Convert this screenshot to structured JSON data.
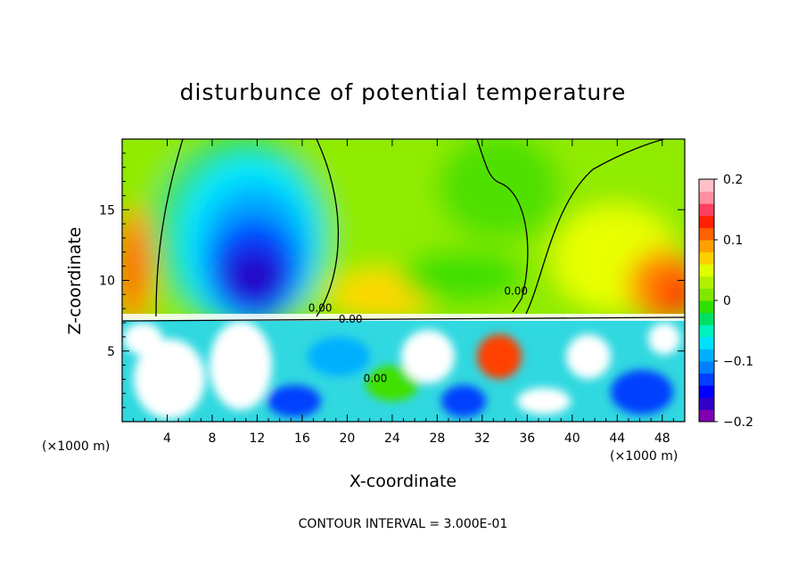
{
  "chart_data": {
    "type": "heatmap",
    "title": "disturbunce of potential temperature",
    "xlabel": "X-coordinate",
    "ylabel": "Z-coordinate",
    "x_unit": "(×1000 m)",
    "z_unit": "(×1000 m)",
    "xlim": [
      0,
      50
    ],
    "ylim": [
      0,
      20
    ],
    "x_ticks": [
      4,
      8,
      12,
      16,
      20,
      24,
      28,
      32,
      36,
      40,
      44,
      48
    ],
    "y_ticks": [
      5,
      10,
      15
    ],
    "footer": "CONTOUR INTERVAL = 3.000E-01",
    "contour_interval": 0.3,
    "contour_labels": [
      {
        "text": "0.00",
        "x": 17.6,
        "z": 7.8
      },
      {
        "text": "0.00",
        "x": 20.3,
        "z": 7.0
      },
      {
        "text": "0.00",
        "x": 22.5,
        "z": 2.8
      },
      {
        "text": "0.00",
        "x": 35.0,
        "z": 9.0
      }
    ],
    "colorbar": {
      "min": -0.2,
      "max": 0.2,
      "tick_labels": [
        "0.2",
        "0.1",
        "0",
        "−0.1",
        "−0.2"
      ],
      "tick_values": [
        0.2,
        0.1,
        0,
        -0.1,
        -0.2
      ],
      "levels": [
        {
          "color": "#8000b0"
        },
        {
          "color": "#3000c8"
        },
        {
          "color": "#0000ff"
        },
        {
          "color": "#0040ff"
        },
        {
          "color": "#0080ff"
        },
        {
          "color": "#00b0ff"
        },
        {
          "color": "#00e0ff"
        },
        {
          "color": "#00f0c0"
        },
        {
          "color": "#00e060"
        },
        {
          "color": "#30e000"
        },
        {
          "color": "#80e800"
        },
        {
          "color": "#b0f000"
        },
        {
          "color": "#e0ff00"
        },
        {
          "color": "#ffd000"
        },
        {
          "color": "#ffa000"
        },
        {
          "color": "#ff6000"
        },
        {
          "color": "#ff2000"
        },
        {
          "color": "#ff4060"
        },
        {
          "color": "#ff90a0"
        },
        {
          "color": "#ffc0c8"
        }
      ]
    },
    "field_features": [
      {
        "region": "upper-left plume",
        "x_range": [
          6,
          20
        ],
        "z_range": [
          7.5,
          19.5
        ],
        "value": -0.16
      },
      {
        "region": "upper-right warm",
        "x_range": [
          44,
          50
        ],
        "z_range": [
          7.5,
          14
        ],
        "value": 0.14
      },
      {
        "region": "upper-left warm edge",
        "x_range": [
          0,
          2
        ],
        "z_range": [
          8,
          15
        ],
        "value": 0.12
      },
      {
        "region": "mid column",
        "x_range": [
          20,
          36
        ],
        "z_range": [
          7.5,
          19.5
        ],
        "value": 0.03
      },
      {
        "region": "lower layer",
        "x_range": [
          0,
          50
        ],
        "z_range": [
          0,
          7.3
        ],
        "value": "mixed, exceeds ±0.2"
      }
    ]
  }
}
